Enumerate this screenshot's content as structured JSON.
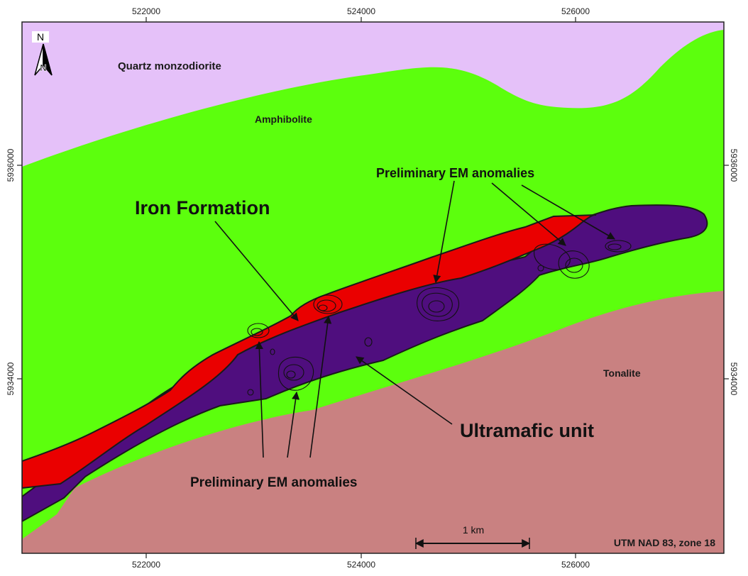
{
  "colors": {
    "quartz_monzodiorite": "#e5c1f9",
    "amphibolite": "#5cff0d",
    "tonalite": "#c98181",
    "iron_formation": "#ea0000",
    "ultramafic": "#4f0e7e",
    "outline": "#1a1a1a",
    "frame": "#222222"
  },
  "axes": {
    "x_ticks": [
      "522000",
      "524000",
      "526000"
    ],
    "y_ticks": [
      "5936000",
      "5934000"
    ]
  },
  "north_arrow": {
    "letter": "N"
  },
  "units": {
    "quartz_monzodiorite": "Quartz monzodiorite",
    "amphibolite": "Amphibolite",
    "tonalite": "Tonalite"
  },
  "annotations": {
    "iron_formation": "Iron Formation",
    "ultramafic_unit": "Ultramafic unit",
    "em_anomalies_top": "Preliminary EM anomalies",
    "em_anomalies_bottom": "Preliminary EM anomalies"
  },
  "scale_bar": {
    "label": "1 km"
  },
  "projection": "UTM NAD 83, zone 18"
}
